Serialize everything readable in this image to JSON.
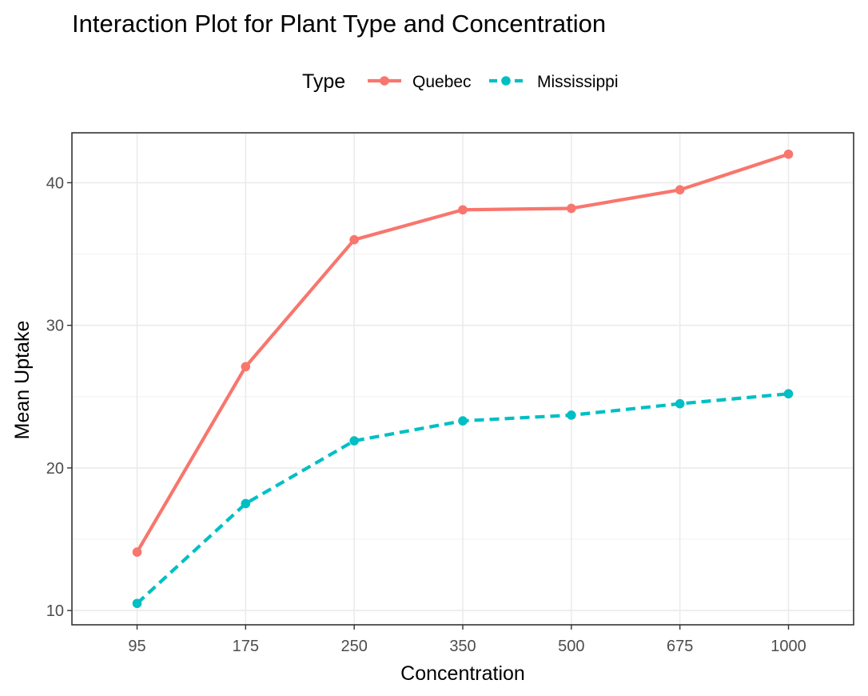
{
  "chart_data": {
    "type": "line",
    "title": "Interaction Plot for Plant Type and Concentration",
    "xlabel": "Concentration",
    "ylabel": "Mean Uptake",
    "categories": [
      "95",
      "175",
      "250",
      "350",
      "500",
      "675",
      "1000"
    ],
    "y_ticks": [
      "10",
      "20",
      "30",
      "40"
    ],
    "ylim": [
      9.0,
      43.5
    ],
    "grid": true,
    "legend": {
      "title": "Type",
      "position": "top",
      "entries": [
        "Quebec",
        "Mississippi"
      ]
    },
    "series": [
      {
        "name": "Quebec",
        "color": "#F8766D",
        "line_style": "solid",
        "values": [
          14.1,
          27.1,
          36.0,
          38.1,
          38.2,
          39.5,
          42.0
        ]
      },
      {
        "name": "Mississippi",
        "color": "#00BFC4",
        "line_style": "dashed",
        "values": [
          10.5,
          17.5,
          21.9,
          23.3,
          23.7,
          24.5,
          25.2
        ]
      }
    ]
  }
}
